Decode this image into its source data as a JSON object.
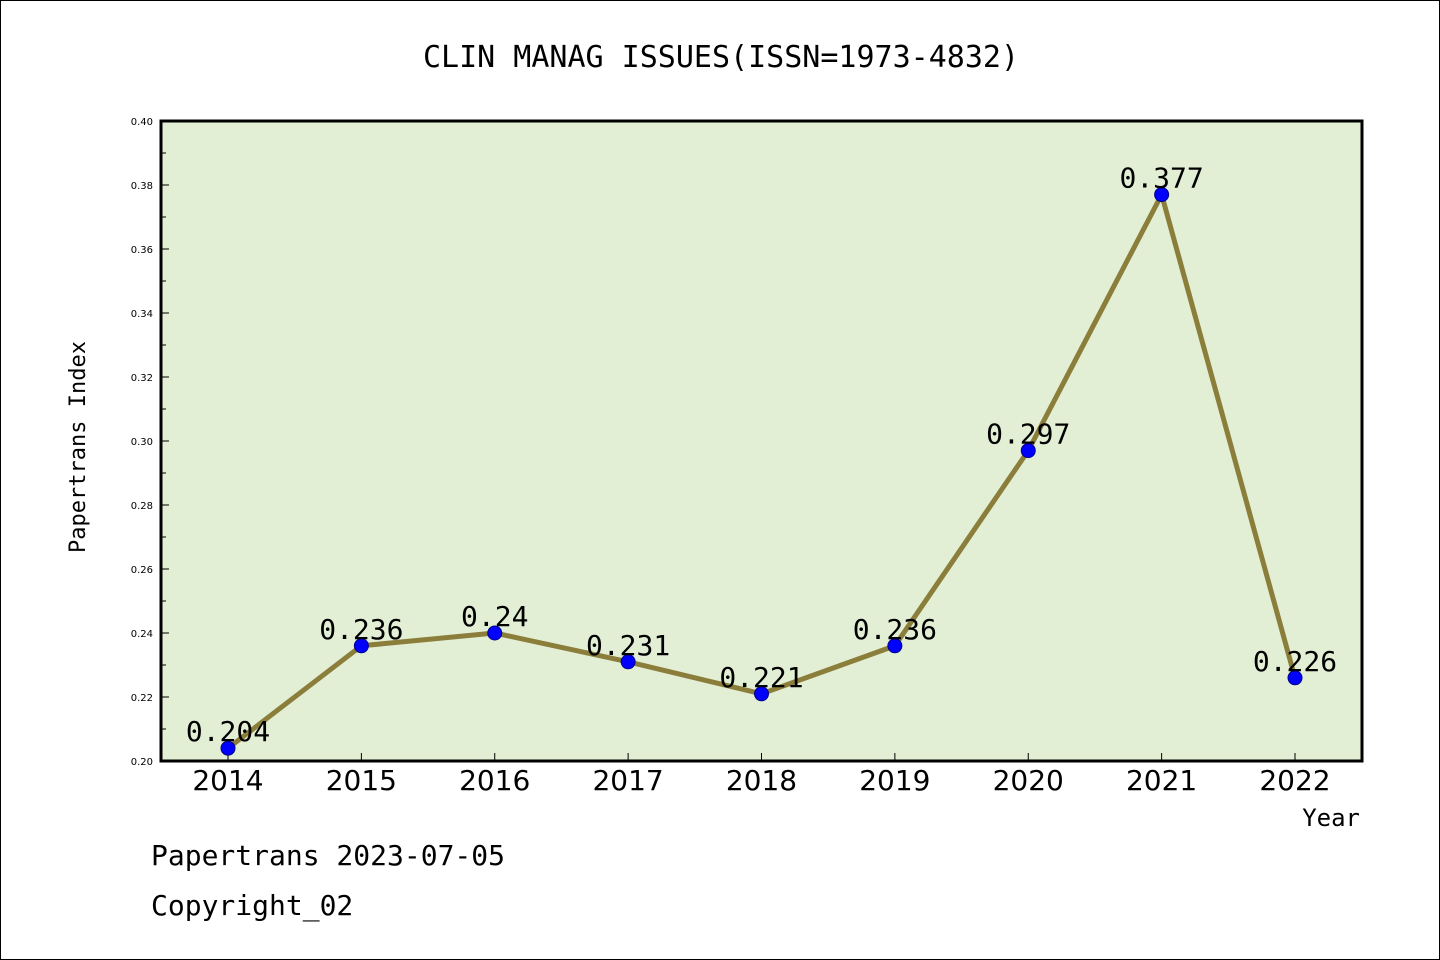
{
  "chart_data": {
    "type": "line",
    "title": "CLIN MANAG ISSUES(ISSN=1973-4832)",
    "xlabel": "Year",
    "ylabel": "Papertrans Index",
    "categories": [
      "2014",
      "2015",
      "2016",
      "2017",
      "2018",
      "2019",
      "2020",
      "2021",
      "2022"
    ],
    "series": [
      {
        "values": [
          0.204,
          0.236,
          0.24,
          0.231,
          0.221,
          0.236,
          0.297,
          0.377,
          0.226
        ],
        "data_labels": [
          "0.204",
          "0.236",
          "0.24",
          "0.231",
          "0.221",
          "0.236",
          "0.297",
          "0.377",
          "0.226"
        ]
      }
    ],
    "ylim": [
      0.2,
      0.4
    ],
    "yticks": [
      "0.20",
      "0.22",
      "0.24",
      "0.26",
      "0.28",
      "0.30",
      "0.32",
      "0.34",
      "0.36",
      "0.38",
      "0.40"
    ],
    "grid": false,
    "legend": "none",
    "colors": {
      "plot_background": "#e2efd5",
      "line": "#8b7d3a",
      "marker": "#0000ff",
      "axis": "#000000"
    }
  },
  "footer": {
    "line1": "Papertrans 2023-07-05",
    "line2": "Copyright_02"
  }
}
